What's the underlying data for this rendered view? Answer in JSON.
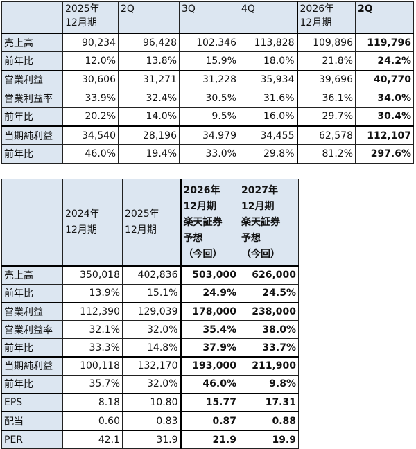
{
  "table1": {
    "header": [
      "2025年\n12月期",
      "2Q",
      "3Q",
      "4Q",
      "2026年\n12月期",
      "2Q"
    ],
    "rows": [
      [
        "売上高",
        "90,234",
        "96,428",
        "102,346",
        "113,828",
        "109,896",
        "119,796"
      ],
      [
        "前年比",
        "12.0%",
        "13.8%",
        "15.9%",
        "18.0%",
        "21.8%",
        "24.2%"
      ],
      [
        "営業利益",
        "30,606",
        "31,271",
        "31,228",
        "35,934",
        "39,696",
        "40,770"
      ],
      [
        "営業利益率",
        "33.9%",
        "32.4%",
        "30.5%",
        "31.6%",
        "36.1%",
        "34.0%"
      ],
      [
        "前年比",
        "20.2%",
        "14.0%",
        "9.5%",
        "16.0%",
        "29.7%",
        "30.4%"
      ],
      [
        "当期純利益",
        "34,540",
        "28,196",
        "34,979",
        "34,455",
        "62,578",
        "112,107"
      ],
      [
        "前年比",
        "46.0%",
        "19.4%",
        "33.0%",
        "29.8%",
        "81.2%",
        "297.6%"
      ]
    ]
  },
  "table2": {
    "header": [
      "2024年\n12月期",
      "2025年\n12月期",
      "2026年\n12月期\n楽天証券\n予想\n（今回）",
      "2027年\n12月期\n楽天証券\n予想\n（今回）"
    ],
    "rows": [
      [
        "売上高",
        "350,018",
        "402,836",
        "503,000",
        "626,000"
      ],
      [
        "前年比",
        "13.9%",
        "15.1%",
        "24.9%",
        "24.5%"
      ],
      [
        "営業利益",
        "112,390",
        "129,039",
        "178,000",
        "238,000"
      ],
      [
        "営業利益率",
        "32.1%",
        "32.0%",
        "35.4%",
        "38.0%"
      ],
      [
        "前年比",
        "33.3%",
        "14.8%",
        "37.9%",
        "33.7%"
      ],
      [
        "当期純利益",
        "100,118",
        "132,170",
        "193,000",
        "211,900"
      ],
      [
        "前年比",
        "35.7%",
        "32.0%",
        "46.0%",
        "9.8%"
      ],
      [
        "EPS",
        "8.18",
        "10.80",
        "15.77",
        "17.31"
      ],
      [
        "配当",
        "0.60",
        "0.83",
        "0.87",
        "0.88"
      ],
      [
        "PER",
        "42.1",
        "31.9",
        "21.9",
        "19.9"
      ]
    ]
  }
}
